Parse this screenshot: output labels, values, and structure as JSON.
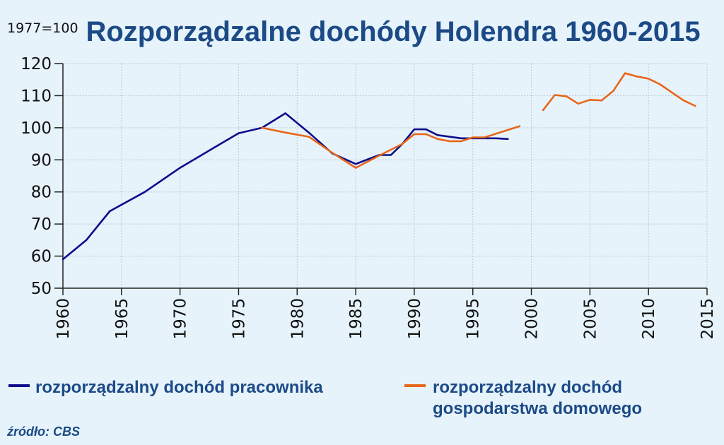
{
  "chart_data": {
    "type": "line",
    "title": "Rozporządzalne dochódy Holendra 1960-2015",
    "unit_note": "1977=100",
    "xlim": [
      1960,
      2015
    ],
    "ylim": [
      50,
      120
    ],
    "x_ticks": [
      1960,
      1965,
      1970,
      1975,
      1980,
      1985,
      1990,
      1995,
      2000,
      2005,
      2010,
      2015
    ],
    "y_ticks": [
      50,
      60,
      70,
      80,
      90,
      100,
      110,
      120
    ],
    "grid": true,
    "legend_position": "bottom",
    "series": [
      {
        "name": "rozporządzalny dochód pracownika",
        "color": "#0d0d8c",
        "segments": [
          [
            [
              1960,
              59
            ],
            [
              1962,
              65
            ],
            [
              1964,
              74
            ],
            [
              1967,
              80
            ],
            [
              1970,
              87.5
            ],
            [
              1973,
              94
            ],
            [
              1975,
              98.3
            ],
            [
              1977,
              100
            ],
            [
              1979,
              104.5
            ],
            [
              1981,
              98.5
            ],
            [
              1983,
              92
            ],
            [
              1985,
              88.7
            ],
            [
              1987,
              91.5
            ],
            [
              1988,
              91.5
            ],
            [
              1989,
              95
            ],
            [
              1990,
              99.5
            ],
            [
              1991,
              99.5
            ],
            [
              1992,
              97.7
            ],
            [
              1994,
              96.7
            ],
            [
              1995,
              96.7
            ],
            [
              1997,
              96.7
            ],
            [
              1998,
              96.5
            ]
          ]
        ]
      },
      {
        "name": "rozporządzalny dochód gospodarstwa domowego",
        "label_lines": [
          "rozporządzalny dochód",
          "gospodarstwa domowego"
        ],
        "color": "#e8661a",
        "segments": [
          [
            [
              1977,
              100
            ],
            [
              1979,
              98.5
            ],
            [
              1981,
              97.2
            ],
            [
              1983,
              92.2
            ],
            [
              1985,
              87.5
            ],
            [
              1987,
              91.3
            ],
            [
              1989,
              95
            ],
            [
              1990,
              98
            ],
            [
              1991,
              98
            ],
            [
              1992,
              96.5
            ],
            [
              1993,
              95.8
            ],
            [
              1994,
              95.8
            ],
            [
              1995,
              97
            ],
            [
              1996,
              97
            ],
            [
              1999,
              100.5
            ]
          ],
          [
            [
              2001,
              105.5
            ],
            [
              2002,
              110.2
            ],
            [
              2003,
              109.8
            ],
            [
              2004,
              107.5
            ],
            [
              2005,
              108.7
            ],
            [
              2006,
              108.5
            ],
            [
              2007,
              111.5
            ],
            [
              2008,
              117
            ],
            [
              2009,
              116
            ],
            [
              2010,
              115.3
            ],
            [
              2011,
              113.5
            ],
            [
              2012,
              111
            ],
            [
              2013,
              108.5
            ],
            [
              2014,
              106.8
            ]
          ]
        ]
      }
    ]
  },
  "source": "źródło: CBS"
}
